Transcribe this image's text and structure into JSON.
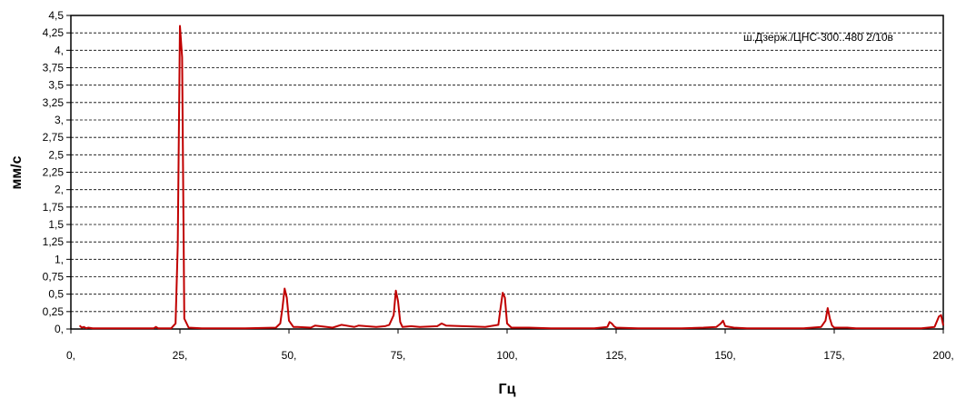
{
  "chart_data": {
    "type": "line",
    "xlabel": "Гц",
    "ylabel": "мм/с",
    "xlim": [
      0,
      200
    ],
    "ylim": [
      0,
      4.5
    ],
    "grid": true,
    "legend_position": "top-right",
    "x_tick_labels": [
      "0,",
      "25,",
      "50,",
      "75,",
      "100,",
      "125,",
      "150,",
      "175,",
      "200,"
    ],
    "y_tick_labels": [
      "0,",
      "0,25",
      "0,5",
      "0,75",
      "1,",
      "1,25",
      "1,5",
      "1,75",
      "2,",
      "2,25",
      "2,5",
      "2,75",
      "3,",
      "3,25",
      "3,5",
      "3,75",
      "4,",
      "4,25",
      "4,5"
    ],
    "series": [
      {
        "name": "ш.Дзерж./ЦНС-300..480 2/10в",
        "color": "#c00000",
        "x": [
          2.0,
          2.5,
          3.0,
          3.5,
          4.0,
          5.0,
          10.0,
          19.0,
          19.5,
          20.0,
          23.0,
          24.0,
          24.5,
          25.0,
          25.5,
          26.0,
          27.0,
          30.0,
          40.0,
          47.0,
          48.0,
          48.5,
          49.0,
          49.5,
          50.0,
          51.0,
          52.0,
          55.0,
          56.0,
          60.0,
          62.0,
          65.0,
          66.0,
          70.0,
          72.0,
          73.0,
          74.0,
          74.5,
          75.0,
          75.5,
          76.0,
          78.0,
          80.0,
          84.0,
          85.0,
          86.0,
          90.0,
          95.0,
          98.0,
          98.5,
          99.0,
          99.5,
          100.0,
          101.0,
          105.0,
          110.0,
          115.0,
          120.0,
          123.0,
          123.5,
          124.0,
          124.5,
          125.0,
          130.0,
          135.0,
          140.0,
          145.0,
          148.0,
          149.0,
          149.5,
          150.0,
          152.0,
          155.0,
          160.0,
          168.0,
          172.0,
          173.0,
          173.5,
          174.0,
          174.5,
          175.0,
          178.0,
          180.0,
          185.0,
          190.0,
          195.0,
          198.0,
          199.0,
          199.5,
          200.0
        ],
        "y": [
          0.05,
          0.02,
          0.03,
          0.01,
          0.02,
          0.01,
          0.01,
          0.01,
          0.03,
          0.01,
          0.01,
          0.08,
          1.2,
          4.35,
          3.9,
          0.15,
          0.02,
          0.01,
          0.01,
          0.02,
          0.08,
          0.3,
          0.58,
          0.45,
          0.12,
          0.03,
          0.03,
          0.02,
          0.05,
          0.02,
          0.06,
          0.03,
          0.05,
          0.03,
          0.04,
          0.06,
          0.2,
          0.55,
          0.4,
          0.1,
          0.03,
          0.04,
          0.03,
          0.04,
          0.08,
          0.05,
          0.04,
          0.03,
          0.06,
          0.3,
          0.52,
          0.45,
          0.08,
          0.02,
          0.02,
          0.01,
          0.01,
          0.01,
          0.03,
          0.1,
          0.08,
          0.04,
          0.02,
          0.01,
          0.01,
          0.01,
          0.02,
          0.03,
          0.08,
          0.12,
          0.04,
          0.02,
          0.01,
          0.01,
          0.01,
          0.03,
          0.12,
          0.3,
          0.15,
          0.05,
          0.02,
          0.02,
          0.01,
          0.01,
          0.01,
          0.01,
          0.03,
          0.18,
          0.2,
          0.05
        ]
      }
    ]
  }
}
